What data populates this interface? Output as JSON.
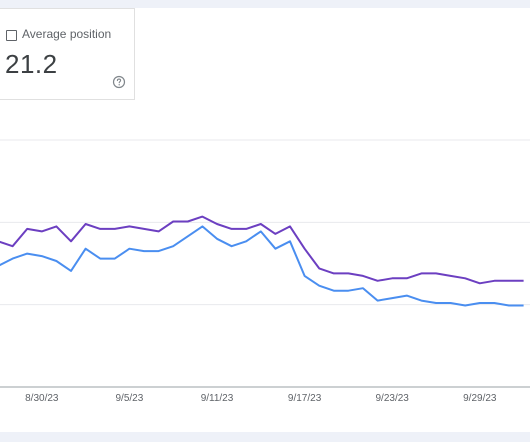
{
  "metric": {
    "label": "Average position",
    "value": "21.2",
    "help_icon": "help-circle-icon"
  },
  "chart_data": {
    "type": "line",
    "x": [
      "8/27/23",
      "8/28/23",
      "8/29/23",
      "8/30/23",
      "8/31/23",
      "9/1/23",
      "9/2/23",
      "9/3/23",
      "9/4/23",
      "9/5/23",
      "9/6/23",
      "9/7/23",
      "9/8/23",
      "9/9/23",
      "9/10/23",
      "9/11/23",
      "9/12/23",
      "9/13/23",
      "9/14/23",
      "9/15/23",
      "9/16/23",
      "9/17/23",
      "9/18/23",
      "9/19/23",
      "9/20/23",
      "9/21/23",
      "9/22/23",
      "9/23/23",
      "9/24/23",
      "9/25/23",
      "9/26/23",
      "9/27/23",
      "9/28/23",
      "9/29/23",
      "9/30/23",
      "10/1/23",
      "10/2/23"
    ],
    "tick_labels": [
      "8/30/23",
      "9/5/23",
      "9/11/23",
      "9/17/23",
      "9/23/23",
      "9/29/23"
    ],
    "series": [
      {
        "color": "#6c3fc1",
        "values": [
          0.59,
          0.57,
          0.64,
          0.63,
          0.65,
          0.59,
          0.66,
          0.64,
          0.64,
          0.65,
          0.64,
          0.63,
          0.67,
          0.67,
          0.69,
          0.66,
          0.64,
          0.64,
          0.66,
          0.62,
          0.65,
          0.56,
          0.48,
          0.46,
          0.46,
          0.45,
          0.43,
          0.44,
          0.44,
          0.46,
          0.46,
          0.45,
          0.44,
          0.42,
          0.43,
          0.43,
          0.43
        ]
      },
      {
        "color": "#4a8ef0",
        "values": [
          0.49,
          0.52,
          0.54,
          0.53,
          0.51,
          0.47,
          0.56,
          0.52,
          0.52,
          0.56,
          0.55,
          0.55,
          0.57,
          0.61,
          0.65,
          0.6,
          0.57,
          0.59,
          0.63,
          0.56,
          0.59,
          0.45,
          0.41,
          0.39,
          0.39,
          0.4,
          0.35,
          0.36,
          0.37,
          0.35,
          0.34,
          0.34,
          0.33,
          0.34,
          0.34,
          0.33,
          0.33
        ]
      }
    ],
    "grid": true
  }
}
